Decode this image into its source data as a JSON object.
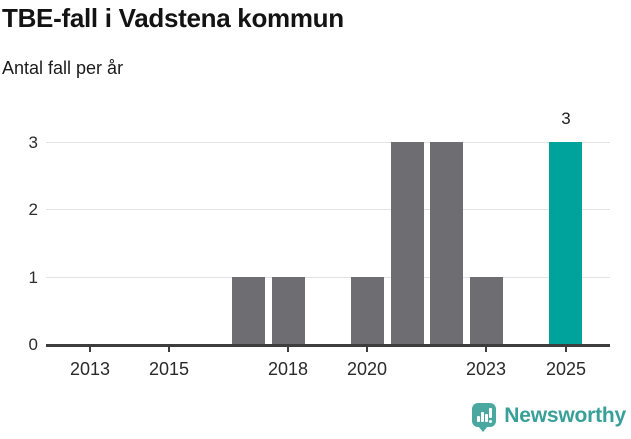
{
  "chart_data": {
    "type": "bar",
    "title": "TBE-fall i Vadstena kommun",
    "subtitle": "Antal fall per år",
    "xlabel": "",
    "ylabel": "Antal fall per år",
    "x": [
      2012,
      2013,
      2014,
      2015,
      2016,
      2017,
      2018,
      2019,
      2020,
      2021,
      2022,
      2023,
      2024,
      2025
    ],
    "values": [
      0,
      0,
      0,
      0,
      0,
      1,
      1,
      0,
      1,
      3,
      3,
      1,
      0,
      3
    ],
    "highlight_year": 2025,
    "x_tick_labels": [
      "2013",
      "2015",
      "2018",
      "2020",
      "2023",
      "2025"
    ],
    "y_tick_labels": [
      "0",
      "1",
      "2",
      "3"
    ],
    "ylim": [
      0,
      3
    ],
    "grid": "horizontal-only",
    "legend": "none",
    "annotations": [
      {
        "year": 2025,
        "text": "3"
      }
    ],
    "colors": {
      "bar": "#6d6d72",
      "highlight": "#00a39b",
      "gridline": "#e3e3e3",
      "axis": "#3d3d3d"
    }
  },
  "footer": {
    "brand_name": "Newsworthy",
    "brand_text_color": "#38a099",
    "brand_icon_color": "#4aa8a0",
    "brand_icon": "newsworthy-speech-bubble-barchart-icon"
  }
}
